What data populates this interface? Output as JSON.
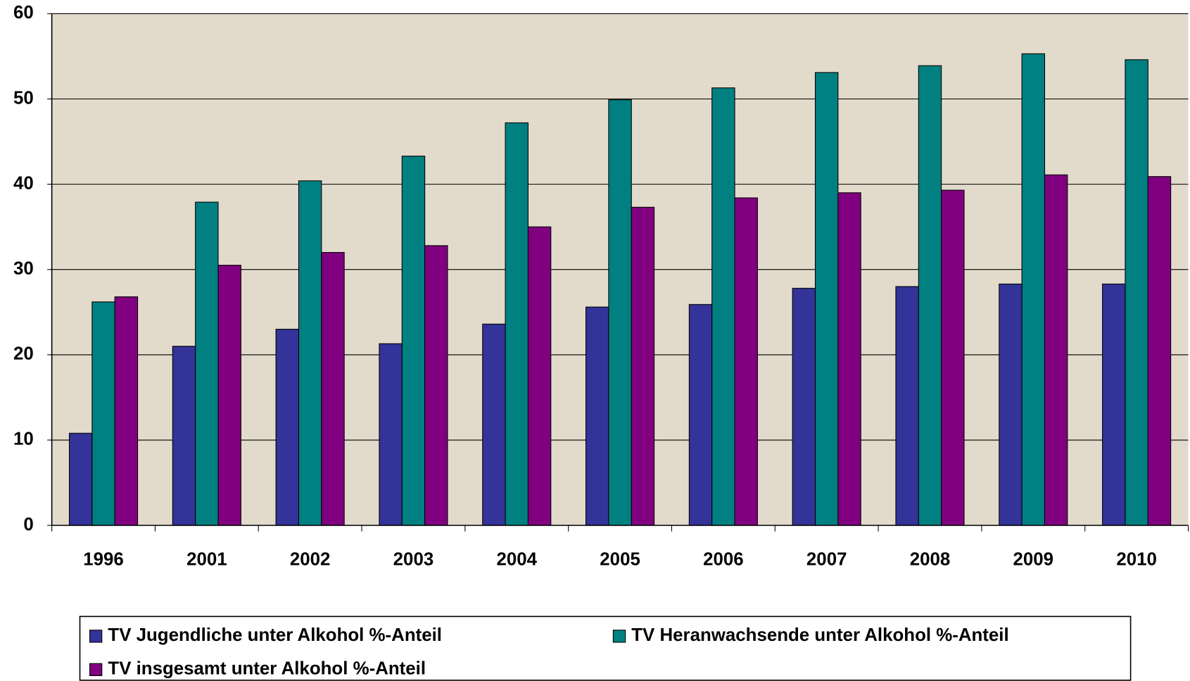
{
  "chart_data": {
    "type": "bar",
    "categories": [
      "1996",
      "2001",
      "2002",
      "2003",
      "2004",
      "2005",
      "2006",
      "2007",
      "2008",
      "2009",
      "2010"
    ],
    "series": [
      {
        "name": "TV Jugendliche unter Alkohol %-Anteil",
        "color": "#333399",
        "values": [
          10.8,
          21.0,
          23.0,
          21.3,
          23.6,
          25.6,
          25.9,
          27.8,
          28.0,
          28.3,
          28.3
        ]
      },
      {
        "name": "TV Heranwachsende unter Alkohol %-Anteil",
        "color": "#008080",
        "values": [
          26.2,
          37.9,
          40.4,
          43.3,
          47.2,
          49.9,
          51.3,
          53.1,
          53.9,
          55.3,
          54.6
        ]
      },
      {
        "name": "TV insgesamt unter Alkohol %-Anteil",
        "color": "#800080",
        "values": [
          26.8,
          30.5,
          32.0,
          32.8,
          35.0,
          37.3,
          38.4,
          39.0,
          39.3,
          41.1,
          40.9
        ]
      }
    ],
    "ylim": [
      0,
      60
    ],
    "yticks": [
      0,
      10,
      20,
      30,
      40,
      50,
      60
    ],
    "grid": true,
    "legend": "bottom"
  }
}
